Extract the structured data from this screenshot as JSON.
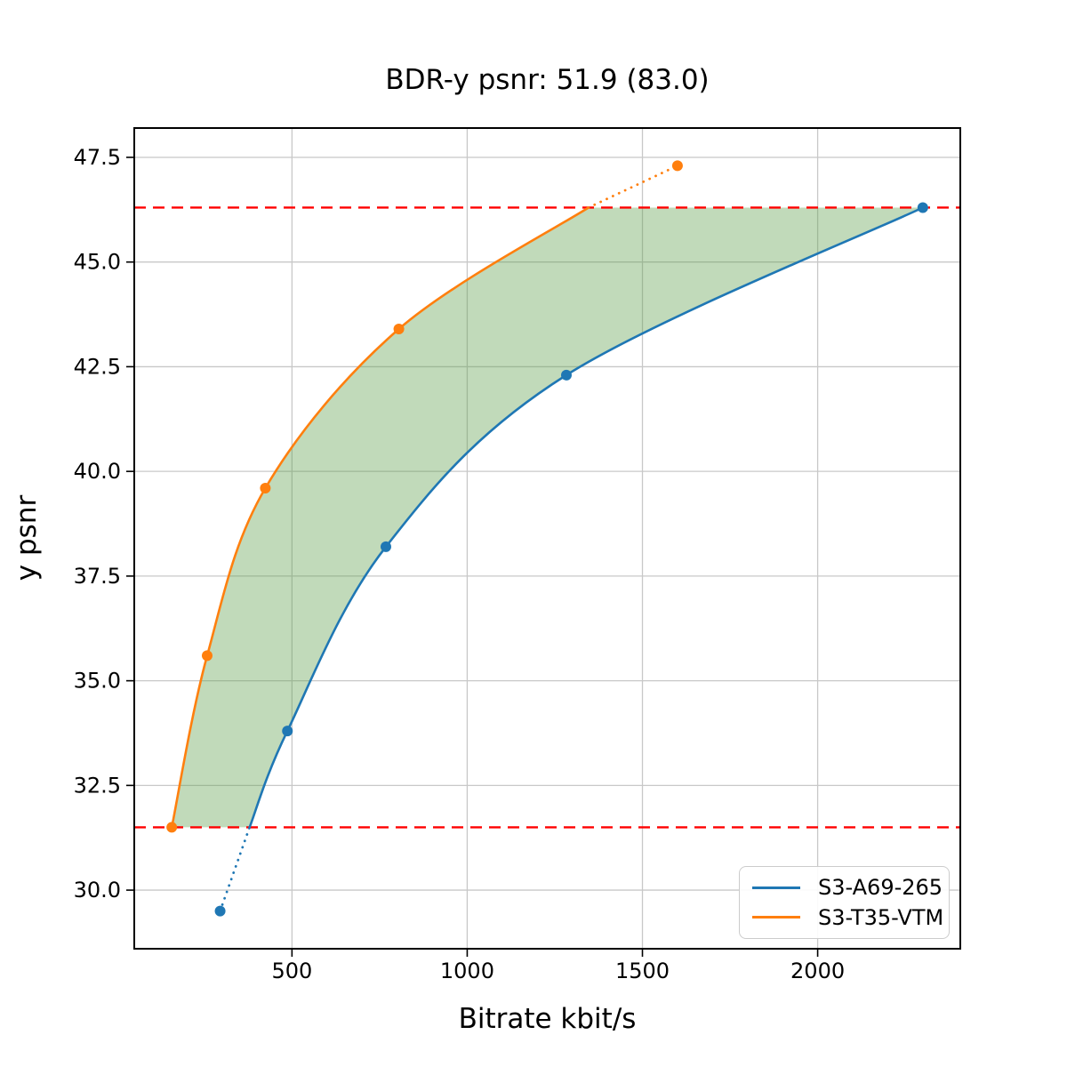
{
  "figure": {
    "background": "#ffffff"
  },
  "chart_data": {
    "type": "line",
    "title": "BDR-y psnr: 51.9 (83.0)",
    "xlabel": "Bitrate kbit/s",
    "ylabel": "y psnr",
    "xlim": [
      50,
      2407
    ],
    "ylim": [
      28.6,
      48.2
    ],
    "x_ticks": [
      500,
      1000,
      1500,
      2000
    ],
    "y_ticks": [
      30.0,
      32.5,
      35.0,
      37.5,
      40.0,
      42.5,
      45.0,
      47.5
    ],
    "grid": true,
    "grid_color": "#c8c8c8",
    "legend_position": "lower right",
    "series": [
      {
        "name": "S3-A69-265",
        "color": "#1f77b4",
        "points": [
          [
            295,
            29.5
          ],
          [
            487,
            33.8
          ],
          [
            768,
            38.2
          ],
          [
            1283,
            42.3
          ],
          [
            2300,
            46.3
          ]
        ],
        "solid_curve": [
          [
            379,
            31.5
          ],
          [
            487,
            33.8
          ],
          [
            768,
            38.2
          ],
          [
            1283,
            42.3
          ],
          [
            2300,
            46.3
          ]
        ],
        "dotted_segment": [
          [
            295,
            29.5
          ],
          [
            379,
            31.5
          ]
        ]
      },
      {
        "name": "S3-T35-VTM",
        "color": "#ff7f0e",
        "points": [
          [
            157,
            31.5
          ],
          [
            258,
            35.6
          ],
          [
            424,
            39.6
          ],
          [
            805,
            43.4
          ],
          [
            1600,
            47.3
          ]
        ],
        "solid_curve": [
          [
            157,
            31.5
          ],
          [
            258,
            35.6
          ],
          [
            424,
            39.6
          ],
          [
            805,
            43.4
          ],
          [
            1346,
            46.3
          ]
        ],
        "dotted_segment": [
          [
            1346,
            46.3
          ],
          [
            1600,
            47.3
          ]
        ]
      }
    ],
    "reference_lines": {
      "color": "#ff0000",
      "style": "dashed",
      "y_values": [
        31.5,
        46.3
      ]
    },
    "shaded_region": {
      "color": "rgba(92,158,73,0.38)",
      "between_psnr": [
        31.5,
        46.3
      ],
      "description": "area between S3-T35-VTM and S3-A69-265 curves"
    }
  }
}
